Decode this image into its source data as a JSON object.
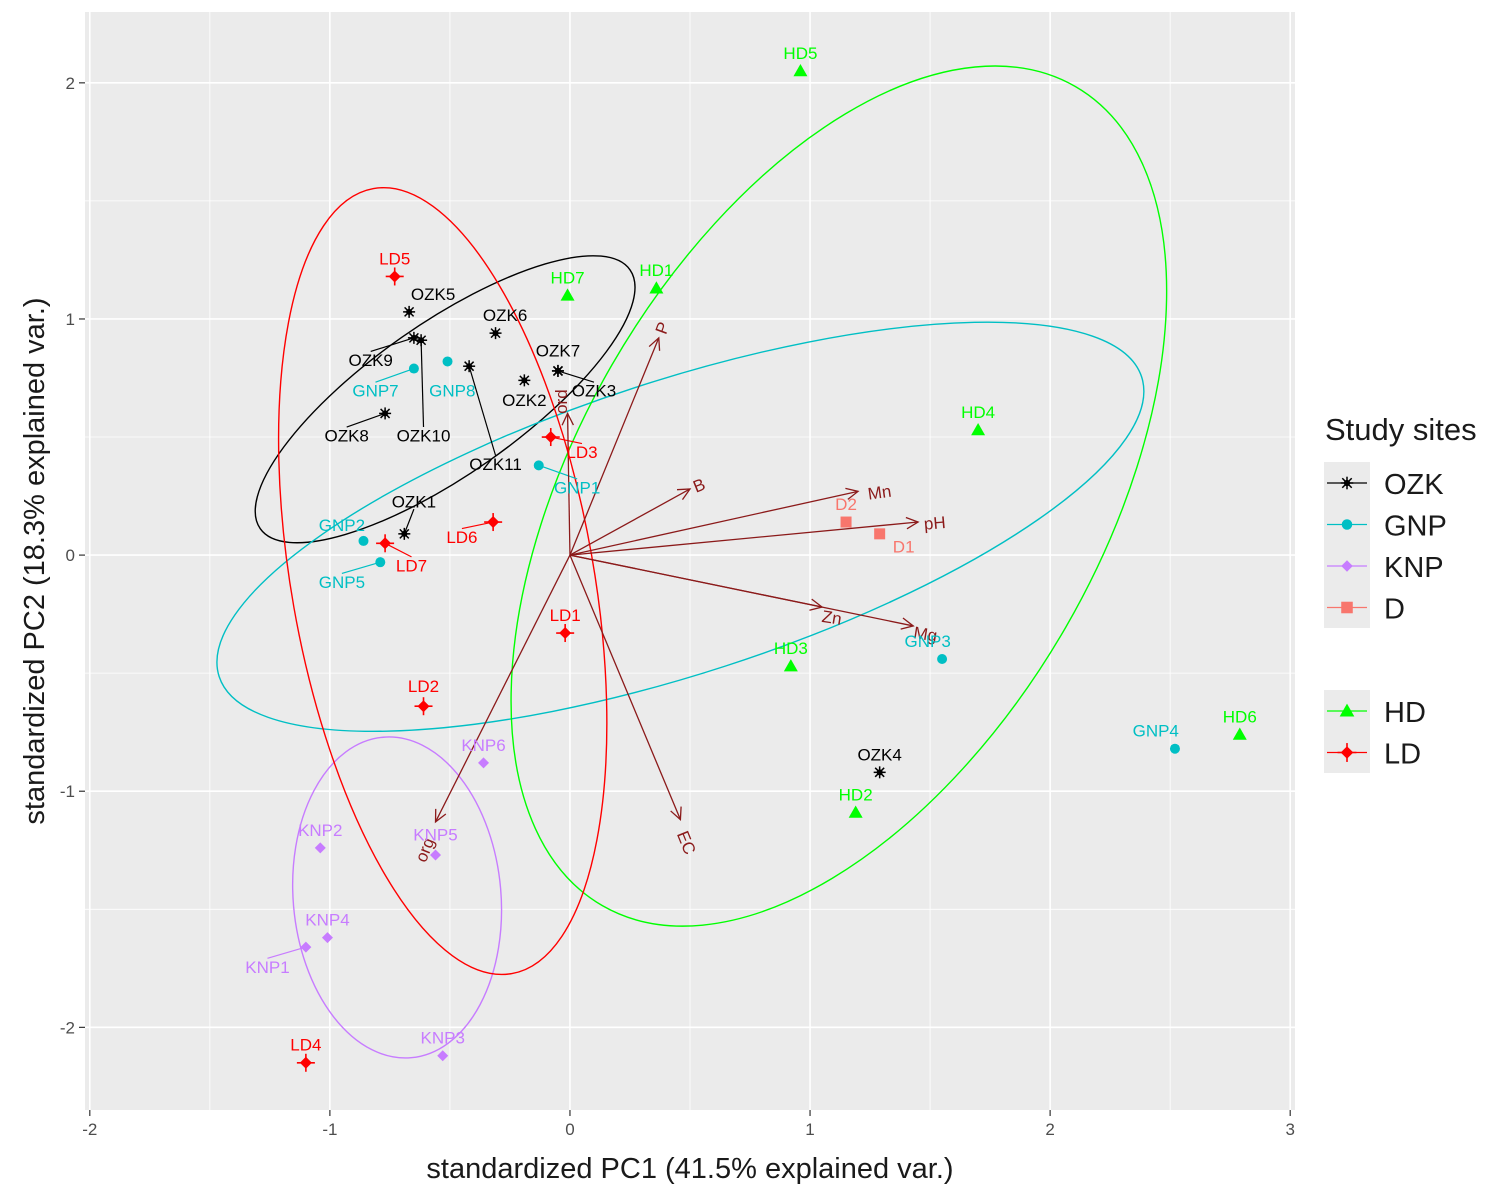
{
  "chart_data": {
    "type": "scatter",
    "subtype": "pca-biplot",
    "xlabel": "standardized PC1 (41.5% explained var.)",
    "ylabel": "standardized PC2 (18.3% explained var.)",
    "xlim": [
      -2.02,
      3.02
    ],
    "ylim": [
      -2.35,
      2.3
    ],
    "xticks": [
      -2,
      -1,
      0,
      1,
      2,
      3
    ],
    "yticks": [
      -2,
      -1,
      0,
      1,
      2
    ],
    "grid": true,
    "legend": {
      "title": "Study sites",
      "placement": "right",
      "groups": [
        [
          "OZK",
          "GNP",
          "KNP",
          "D"
        ],
        [
          "HD",
          "LD"
        ]
      ]
    },
    "series": [
      {
        "name": "OZK",
        "color": "#000000",
        "shape": "asterisk",
        "points": [
          {
            "label": "OZK1",
            "x": -0.69,
            "y": 0.09,
            "lx": -0.65,
            "ly": 0.22
          },
          {
            "label": "OZK2",
            "x": -0.19,
            "y": 0.74,
            "lx": -0.19,
            "ly": 0.65
          },
          {
            "label": "OZK3",
            "x": -0.05,
            "y": 0.78,
            "lx": 0.1,
            "ly": 0.69
          },
          {
            "label": "OZK4",
            "x": 1.29,
            "y": -0.92,
            "lx": 1.29,
            "ly": -0.85
          },
          {
            "label": "OZK5",
            "x": -0.67,
            "y": 1.03,
            "lx": -0.57,
            "ly": 1.1
          },
          {
            "label": "OZK6",
            "x": -0.31,
            "y": 0.94,
            "lx": -0.27,
            "ly": 1.01
          },
          {
            "label": "OZK7",
            "x": -0.05,
            "y": 0.78,
            "lx": -0.05,
            "ly": 0.86
          },
          {
            "label": "OZK8",
            "x": -0.77,
            "y": 0.6,
            "lx": -0.93,
            "ly": 0.5
          },
          {
            "label": "OZK9",
            "x": -0.65,
            "y": 0.92,
            "lx": -0.83,
            "ly": 0.82
          },
          {
            "label": "OZK10",
            "x": -0.62,
            "y": 0.91,
            "lx": -0.61,
            "ly": 0.5
          },
          {
            "label": "OZK11",
            "x": -0.42,
            "y": 0.8,
            "lx": -0.31,
            "ly": 0.38
          }
        ]
      },
      {
        "name": "GNP",
        "color": "#00bfc4",
        "shape": "circle",
        "points": [
          {
            "label": "GNP1",
            "x": -0.13,
            "y": 0.38,
            "lx": 0.03,
            "ly": 0.28
          },
          {
            "label": "GNP2",
            "x": -0.86,
            "y": 0.06,
            "lx": -0.95,
            "ly": 0.12
          },
          {
            "label": "GNP3",
            "x": 1.55,
            "y": -0.44,
            "lx": 1.49,
            "ly": -0.37
          },
          {
            "label": "GNP4",
            "x": 2.52,
            "y": -0.82,
            "lx": 2.44,
            "ly": -0.75
          },
          {
            "label": "GNP5",
            "x": -0.79,
            "y": -0.03,
            "lx": -0.95,
            "ly": -0.12
          },
          {
            "label": "GNP7",
            "x": -0.65,
            "y": 0.79,
            "lx": -0.81,
            "ly": 0.69
          },
          {
            "label": "GNP8",
            "x": -0.51,
            "y": 0.82,
            "lx": -0.49,
            "ly": 0.69
          }
        ]
      },
      {
        "name": "KNP",
        "color": "#c77cff",
        "shape": "diamond",
        "points": [
          {
            "label": "KNP1",
            "x": -1.1,
            "y": -1.66,
            "lx": -1.26,
            "ly": -1.75
          },
          {
            "label": "KNP2",
            "x": -1.04,
            "y": -1.24,
            "lx": -1.04,
            "ly": -1.17
          },
          {
            "label": "KNP3",
            "x": -0.53,
            "y": -2.12,
            "lx": -0.53,
            "ly": -2.05
          },
          {
            "label": "KNP4",
            "x": -1.01,
            "y": -1.62,
            "lx": -1.01,
            "ly": -1.55
          },
          {
            "label": "KNP5",
            "x": -0.56,
            "y": -1.27,
            "lx": -0.56,
            "ly": -1.19
          },
          {
            "label": "KNP6",
            "x": -0.36,
            "y": -0.88,
            "lx": -0.36,
            "ly": -0.81
          }
        ]
      },
      {
        "name": "D",
        "color": "#f8766d",
        "shape": "square",
        "points": [
          {
            "label": "D1",
            "x": 1.29,
            "y": 0.09,
            "lx": 1.39,
            "ly": 0.03
          },
          {
            "label": "D2",
            "x": 1.15,
            "y": 0.14,
            "lx": 1.15,
            "ly": 0.21
          }
        ]
      },
      {
        "name": "HD",
        "color": "#00ff00",
        "shape": "triangle",
        "points": [
          {
            "label": "HD1",
            "x": 0.36,
            "y": 1.13,
            "lx": 0.36,
            "ly": 1.2
          },
          {
            "label": "HD2",
            "x": 1.19,
            "y": -1.09,
            "lx": 1.19,
            "ly": -1.02
          },
          {
            "label": "HD3",
            "x": 0.92,
            "y": -0.47,
            "lx": 0.92,
            "ly": -0.4
          },
          {
            "label": "HD4",
            "x": 1.7,
            "y": 0.53,
            "lx": 1.7,
            "ly": 0.6
          },
          {
            "label": "HD5",
            "x": 0.96,
            "y": 2.05,
            "lx": 0.96,
            "ly": 2.12
          },
          {
            "label": "HD6",
            "x": 2.79,
            "y": -0.76,
            "lx": 2.79,
            "ly": -0.69
          },
          {
            "label": "HD7",
            "x": -0.01,
            "y": 1.1,
            "lx": -0.01,
            "ly": 1.17
          }
        ]
      },
      {
        "name": "LD",
        "color": "#ff0000",
        "shape": "diamond-plus",
        "points": [
          {
            "label": "LD1",
            "x": -0.02,
            "y": -0.33,
            "lx": -0.02,
            "ly": -0.26
          },
          {
            "label": "LD2",
            "x": -0.61,
            "y": -0.64,
            "lx": -0.61,
            "ly": -0.56
          },
          {
            "label": "LD3",
            "x": -0.08,
            "y": 0.5,
            "lx": 0.05,
            "ly": 0.43
          },
          {
            "label": "LD4",
            "x": -1.1,
            "y": -2.15,
            "lx": -1.1,
            "ly": -2.08
          },
          {
            "label": "LD5",
            "x": -0.73,
            "y": 1.18,
            "lx": -0.73,
            "ly": 1.25
          },
          {
            "label": "LD6",
            "x": -0.32,
            "y": 0.14,
            "lx": -0.45,
            "ly": 0.07
          },
          {
            "label": "LD7",
            "x": -0.77,
            "y": 0.05,
            "lx": -0.66,
            "ly": -0.05
          }
        ]
      }
    ],
    "loadings": [
      {
        "label": "P",
        "x": 0.37,
        "y": 0.92,
        "lx": 0.39,
        "ly": 0.96,
        "rot": -70
      },
      {
        "label": "ord",
        "x": -0.01,
        "y": 0.6,
        "lx": -0.03,
        "ly": 0.65,
        "rot": -90
      },
      {
        "label": "B",
        "x": 0.5,
        "y": 0.28,
        "lx": 0.54,
        "ly": 0.29,
        "rot": -22
      },
      {
        "label": "Mn",
        "x": 1.2,
        "y": 0.27,
        "lx": 1.29,
        "ly": 0.26,
        "rot": -8
      },
      {
        "label": "pH",
        "x": 1.45,
        "y": 0.14,
        "lx": 1.52,
        "ly": 0.13,
        "rot": -5
      },
      {
        "label": "Zn",
        "x": 1.05,
        "y": -0.22,
        "lx": 1.09,
        "ly": -0.27,
        "rot": 9
      },
      {
        "label": "Mg",
        "x": 1.43,
        "y": -0.3,
        "lx": 1.48,
        "ly": -0.34,
        "rot": 9
      },
      {
        "label": "EC",
        "x": 0.46,
        "y": -1.12,
        "lx": 0.48,
        "ly": -1.22,
        "rot": 68
      },
      {
        "label": "org",
        "x": -0.56,
        "y": -1.13,
        "lx": -0.6,
        "ly": -1.25,
        "rot": -68
      }
    ],
    "ellipses": [
      {
        "group": "OZK",
        "color": "#000000",
        "cx": -0.52,
        "cy": 0.66,
        "a": 0.94,
        "b": 0.32,
        "angle_deg": -35
      },
      {
        "group": "GNP",
        "color": "#00bfc4",
        "cx": 0.46,
        "cy": 0.12,
        "a": 2.02,
        "b": 0.62,
        "angle_deg": -18
      },
      {
        "group": "KNP",
        "color": "#c77cff",
        "cx": -0.72,
        "cy": -1.45,
        "a": 0.67,
        "b": 0.44,
        "angle_deg": 85
      },
      {
        "group": "HD",
        "color": "#00ff00",
        "cx": 1.12,
        "cy": 0.25,
        "a": 1.97,
        "b": 1.11,
        "angle_deg": -60
      },
      {
        "group": "LD",
        "color": "#ff0000",
        "cx": -0.53,
        "cy": -0.11,
        "a": 1.66,
        "b": 0.64,
        "angle_deg": 80
      }
    ]
  }
}
